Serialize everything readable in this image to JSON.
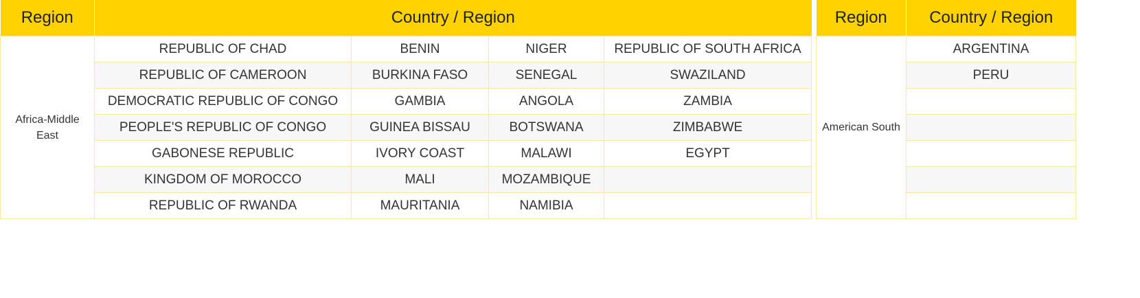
{
  "left_table": {
    "headers": {
      "region": "Region",
      "country": "Country / Region"
    },
    "region_label": "Africa-Middle East",
    "rows": [
      [
        "REPUBLIC OF CHAD",
        "BENIN",
        "NIGER",
        "REPUBLIC OF SOUTH AFRICA"
      ],
      [
        "REPUBLIC OF CAMEROON",
        "BURKINA FASO",
        "SENEGAL",
        "SWAZILAND"
      ],
      [
        "DEMOCRATIC REPUBLIC OF CONGO",
        "GAMBIA",
        "ANGOLA",
        "ZAMBIA"
      ],
      [
        "PEOPLE'S REPUBLIC OF CONGO",
        "GUINEA BISSAU",
        "BOTSWANA",
        "ZIMBABWE"
      ],
      [
        "GABONESE REPUBLIC",
        "IVORY COAST",
        "MALAWI",
        "EGYPT"
      ],
      [
        "KINGDOM OF MOROCCO",
        "MALI",
        "MOZAMBIQUE",
        ""
      ],
      [
        "REPUBLIC OF RWANDA",
        "MAURITANIA",
        "NAMIBIA",
        ""
      ]
    ]
  },
  "right_table": {
    "headers": {
      "region": "Region",
      "country": "Country / Region"
    },
    "region_label": "American South",
    "rows": [
      "ARGENTINA",
      "PERU",
      "",
      "",
      "",
      "",
      ""
    ]
  },
  "colors": {
    "header_background": "#ffd200",
    "border": "#fbe7a0",
    "stripe": "#f7f7f7"
  }
}
